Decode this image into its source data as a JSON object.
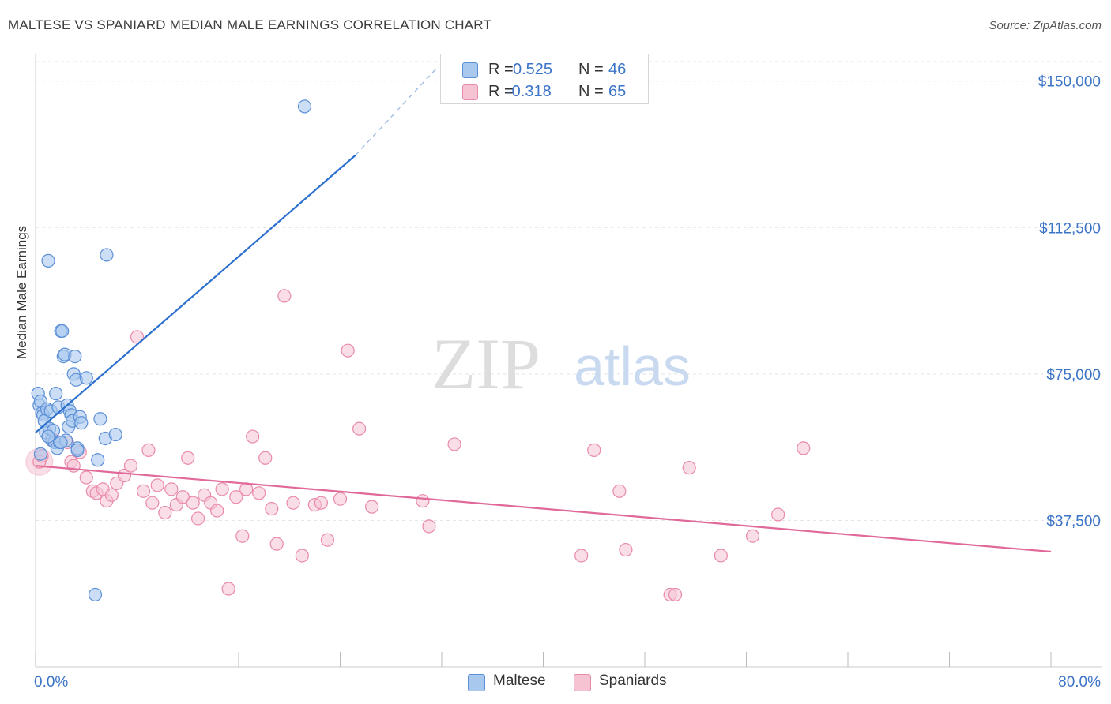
{
  "title": "MALTESE VS SPANIARD MEDIAN MALE EARNINGS CORRELATION CHART",
  "source": "Source: ZipAtlas.com",
  "colors": {
    "maltese_fill": "#a9c8ee",
    "maltese_stroke": "#5b8fd6",
    "maltese_line": "#2b6fcf",
    "spaniards_fill": "#f6c3d3",
    "spaniards_stroke": "#e98aa8",
    "spaniards_line": "#e0699a",
    "axis_label": "#3b74c7",
    "grid": "#e4e4e4"
  },
  "legend": {
    "rows": [
      {
        "r_label": "R =",
        "r_value": "0.525",
        "n_label": "N =",
        "n_value": "46"
      },
      {
        "r_label": "R =",
        "r_value": "-0.318",
        "n_label": "N =",
        "n_value": "65"
      }
    ]
  },
  "bottom_legend": {
    "maltese": "Maltese",
    "spaniards": "Spaniards"
  },
  "chart_data": {
    "type": "scatter",
    "title": "MALTESE VS SPANIARD MEDIAN MALE EARNINGS CORRELATION CHART",
    "xlabel": "",
    "ylabel": "Median Male Earnings",
    "xlim": [
      0,
      80
    ],
    "ylim": [
      0,
      155000
    ],
    "x_tick_labels": {
      "min": "0.0%",
      "max": "80.0%"
    },
    "y_ticks": [
      {
        "value": 37500,
        "label": "$37,500"
      },
      {
        "value": 75000,
        "label": "$75,000"
      },
      {
        "value": 112500,
        "label": "$112,500"
      },
      {
        "value": 150000,
        "label": "$150,000"
      }
    ],
    "watermark": {
      "part1": "ZIP",
      "part2": "atlas"
    },
    "series": [
      {
        "name": "Maltese",
        "r": 0.525,
        "n": 46,
        "trend": {
          "x0": 0.0,
          "y0": 60000,
          "x1": 25.2,
          "y1": 131000,
          "dash_x1": 31.8,
          "dash_y1": 154000
        },
        "points": [
          [
            0.2,
            70000
          ],
          [
            0.3,
            67000
          ],
          [
            0.4,
            68000
          ],
          [
            0.5,
            65000
          ],
          [
            0.6,
            64500
          ],
          [
            0.7,
            63000
          ],
          [
            0.8,
            60000
          ],
          [
            0.9,
            66000
          ],
          [
            1.0,
            104000
          ],
          [
            1.1,
            61000
          ],
          [
            1.2,
            65500
          ],
          [
            1.3,
            58000
          ],
          [
            1.4,
            60500
          ],
          [
            1.5,
            57500
          ],
          [
            1.6,
            70000
          ],
          [
            1.7,
            56000
          ],
          [
            1.8,
            66500
          ],
          [
            1.9,
            57500
          ],
          [
            2.0,
            86000
          ],
          [
            2.1,
            86000
          ],
          [
            2.2,
            79500
          ],
          [
            2.3,
            80000
          ],
          [
            2.4,
            58000
          ],
          [
            2.5,
            67000
          ],
          [
            2.6,
            61500
          ],
          [
            2.7,
            65500
          ],
          [
            2.8,
            64500
          ],
          [
            2.9,
            63000
          ],
          [
            3.0,
            75000
          ],
          [
            3.1,
            79500
          ],
          [
            3.2,
            73500
          ],
          [
            3.3,
            56000
          ],
          [
            3.5,
            64000
          ],
          [
            3.6,
            62500
          ],
          [
            4.0,
            74000
          ],
          [
            4.7,
            18500
          ],
          [
            4.9,
            53000
          ],
          [
            5.1,
            63500
          ],
          [
            5.5,
            58500
          ],
          [
            5.6,
            105500
          ],
          [
            6.3,
            59500
          ],
          [
            21.2,
            143500
          ],
          [
            0.4,
            54500
          ],
          [
            1.0,
            59000
          ],
          [
            2.0,
            57500
          ],
          [
            3.3,
            55500
          ]
        ]
      },
      {
        "name": "Spaniards",
        "r": -0.318,
        "n": 65,
        "trend": {
          "x0": 0.0,
          "y0": 51500,
          "x1": 80.0,
          "y1": 29500
        },
        "points": [
          [
            0.3,
            52500
          ],
          [
            0.5,
            54000
          ],
          [
            1.5,
            58000
          ],
          [
            2.5,
            57500
          ],
          [
            2.8,
            52500
          ],
          [
            3.5,
            55000
          ],
          [
            4.0,
            48500
          ],
          [
            4.5,
            45000
          ],
          [
            4.8,
            44500
          ],
          [
            5.3,
            45500
          ],
          [
            5.6,
            42500
          ],
          [
            6.0,
            44000
          ],
          [
            6.4,
            47000
          ],
          [
            7.0,
            49000
          ],
          [
            7.5,
            51500
          ],
          [
            8.0,
            84500
          ],
          [
            8.5,
            45000
          ],
          [
            8.9,
            55500
          ],
          [
            9.2,
            42000
          ],
          [
            9.6,
            46500
          ],
          [
            10.2,
            39500
          ],
          [
            10.7,
            45500
          ],
          [
            11.1,
            41500
          ],
          [
            11.6,
            43500
          ],
          [
            12.0,
            53500
          ],
          [
            12.4,
            42000
          ],
          [
            12.8,
            38000
          ],
          [
            13.3,
            44000
          ],
          [
            13.8,
            42000
          ],
          [
            14.3,
            40000
          ],
          [
            14.7,
            45500
          ],
          [
            15.2,
            20000
          ],
          [
            15.8,
            43500
          ],
          [
            16.3,
            33500
          ],
          [
            16.6,
            45500
          ],
          [
            17.1,
            59000
          ],
          [
            17.6,
            44500
          ],
          [
            18.1,
            53500
          ],
          [
            18.6,
            40500
          ],
          [
            19.0,
            31500
          ],
          [
            19.6,
            95000
          ],
          [
            20.3,
            42000
          ],
          [
            21.0,
            28500
          ],
          [
            22.0,
            41500
          ],
          [
            22.5,
            42000
          ],
          [
            23.0,
            32500
          ],
          [
            24.0,
            43000
          ],
          [
            24.6,
            81000
          ],
          [
            25.5,
            61000
          ],
          [
            26.5,
            41000
          ],
          [
            30.5,
            42500
          ],
          [
            31.0,
            36000
          ],
          [
            33.0,
            57000
          ],
          [
            43.0,
            28500
          ],
          [
            44.0,
            55500
          ],
          [
            46.0,
            45000
          ],
          [
            46.5,
            30000
          ],
          [
            50.0,
            18500
          ],
          [
            50.4,
            18500
          ],
          [
            51.5,
            51000
          ],
          [
            54.0,
            28500
          ],
          [
            56.5,
            33500
          ],
          [
            58.5,
            39000
          ],
          [
            60.5,
            56000
          ],
          [
            3.0,
            51500
          ]
        ]
      }
    ]
  }
}
